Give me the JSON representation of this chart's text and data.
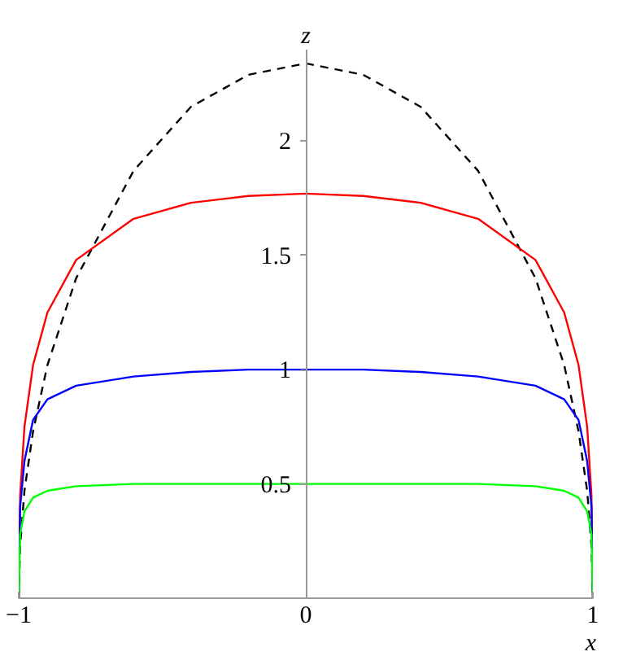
{
  "chart_data": {
    "type": "line",
    "xlabel": "x",
    "ylabel": "z",
    "x": [
      -1,
      -0.995,
      -0.98,
      -0.95,
      -0.9,
      -0.8,
      -0.6,
      -0.4,
      -0.2,
      0,
      0.2,
      0.4,
      0.6,
      0.8,
      0.9,
      0.95,
      0.98,
      0.995,
      1
    ],
    "series": [
      {
        "color": "#000000",
        "line_style": "dashed",
        "values": [
          0,
          0.23,
          0.47,
          0.73,
          1.02,
          1.4,
          1.87,
          2.15,
          2.29,
          2.34,
          2.29,
          2.15,
          1.87,
          1.4,
          1.02,
          0.73,
          0.47,
          0.23,
          0
        ]
      },
      {
        "color": "#ff0000",
        "values": [
          0,
          0.45,
          0.75,
          1.02,
          1.25,
          1.48,
          1.66,
          1.73,
          1.76,
          1.77,
          1.76,
          1.73,
          1.66,
          1.48,
          1.25,
          1.02,
          0.75,
          0.45,
          0
        ]
      },
      {
        "color": "#0000ff",
        "values": [
          0,
          0.4,
          0.6,
          0.78,
          0.87,
          0.93,
          0.97,
          0.99,
          1.0,
          1.0,
          1.0,
          0.99,
          0.97,
          0.93,
          0.87,
          0.78,
          0.6,
          0.4,
          0
        ]
      },
      {
        "color": "#00ff00",
        "values": [
          0,
          0.28,
          0.38,
          0.44,
          0.47,
          0.49,
          0.5,
          0.5,
          0.5,
          0.5,
          0.5,
          0.5,
          0.5,
          0.49,
          0.47,
          0.44,
          0.38,
          0.28,
          0
        ]
      }
    ],
    "xlim": [
      -1,
      1
    ],
    "ylim": [
      0,
      2.4
    ],
    "xticks": [
      -1,
      0,
      1
    ],
    "yticks": [
      0.5,
      1,
      1.5,
      2
    ],
    "grid": false,
    "line_style": "solid"
  }
}
